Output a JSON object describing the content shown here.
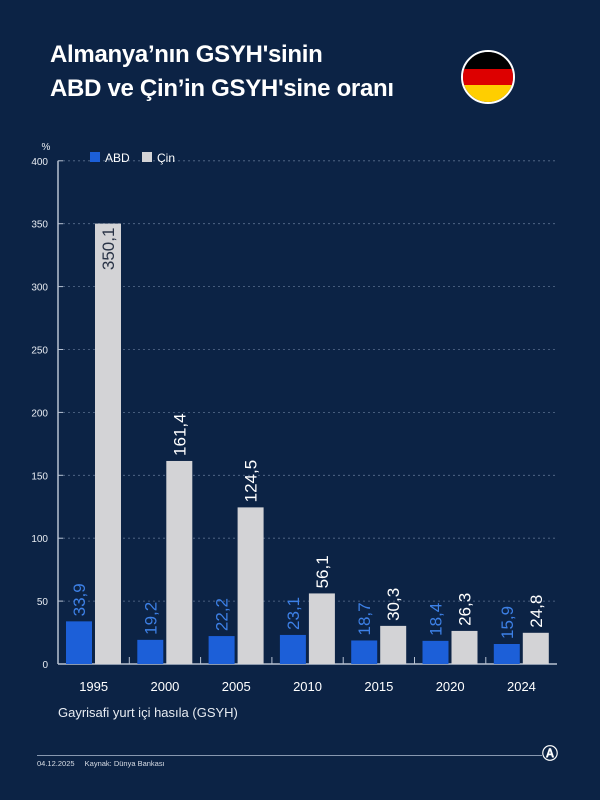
{
  "title_lines": [
    "Almanya’nın GSYH'sinin",
    "ABD ve Çin’in GSYH'sine oranı"
  ],
  "flag": {
    "name": "germany-flag-icon",
    "colors": [
      "#000000",
      "#dd0000",
      "#ffce00"
    ]
  },
  "chart_data": {
    "type": "bar",
    "categories": [
      "1995",
      "2000",
      "2005",
      "2010",
      "2015",
      "2020",
      "2024"
    ],
    "series": [
      {
        "name": "ABD",
        "values": [
          33.9,
          19.2,
          22.2,
          23.1,
          18.7,
          18.4,
          15.9
        ],
        "labels": [
          "33,9",
          "19,2",
          "22,2",
          "23,1",
          "18,7",
          "18,4",
          "15,9"
        ],
        "color": "#1c5fd8"
      },
      {
        "name": "Çin",
        "values": [
          350.1,
          161.4,
          124.5,
          56.1,
          30.3,
          26.3,
          24.8
        ],
        "labels": [
          "350,1",
          "161,4",
          "124,5",
          "56,1",
          "30,3",
          "26,3",
          "24,8"
        ],
        "color": "#d3d3d6"
      }
    ],
    "ylabel": "%",
    "ylim": [
      0,
      400
    ],
    "yticks": [
      "0",
      "50",
      "100",
      "150",
      "200",
      "250",
      "300",
      "350",
      "400"
    ],
    "xlabel": "Gayrisafi yurt içi hasıla (GSYH)",
    "grid": true,
    "legend": "top-left"
  },
  "footer": {
    "date": "04.12.2025",
    "source": "Kaynak: Dünya Bankası",
    "logo": "AA"
  }
}
